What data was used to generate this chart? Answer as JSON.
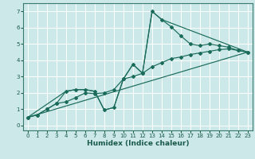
{
  "xlabel": "Humidex (Indice chaleur)",
  "bg_color": "#cce8e8",
  "grid_color": "#ffffff",
  "line_color": "#1a6b5a",
  "xlim": [
    -0.5,
    23.5
  ],
  "ylim": [
    -0.3,
    7.5
  ],
  "xticks": [
    0,
    1,
    2,
    3,
    4,
    5,
    6,
    7,
    8,
    9,
    10,
    11,
    12,
    13,
    14,
    15,
    16,
    17,
    18,
    19,
    20,
    21,
    22,
    23
  ],
  "yticks": [
    0,
    1,
    2,
    3,
    4,
    5,
    6,
    7
  ],
  "line1_x": [
    0,
    1,
    2,
    3,
    4,
    5,
    6,
    7,
    8,
    9,
    10,
    11,
    12,
    13,
    14,
    15,
    16,
    17,
    18,
    19,
    20,
    21,
    22,
    23
  ],
  "line1_y": [
    0.5,
    0.65,
    1.0,
    1.35,
    2.1,
    2.2,
    2.2,
    2.1,
    0.95,
    1.1,
    2.85,
    3.75,
    3.2,
    7.0,
    6.5,
    6.05,
    5.5,
    5.0,
    4.9,
    5.0,
    4.9,
    4.8,
    4.6,
    4.5
  ],
  "line2_x": [
    0,
    1,
    2,
    3,
    4,
    5,
    6,
    7,
    8,
    9,
    10,
    11,
    12,
    13,
    14,
    15,
    16,
    17,
    18,
    19,
    20,
    21,
    22,
    23
  ],
  "line2_y": [
    0.5,
    0.65,
    1.0,
    1.35,
    1.45,
    1.7,
    2.0,
    1.95,
    2.0,
    2.2,
    2.85,
    3.0,
    3.2,
    3.6,
    3.85,
    4.1,
    4.2,
    4.35,
    4.45,
    4.55,
    4.65,
    4.7,
    4.6,
    4.5
  ],
  "line3_x": [
    0,
    23
  ],
  "line3_y": [
    0.5,
    4.5
  ],
  "line4_x": [
    0,
    4,
    5,
    6,
    7,
    8,
    9,
    10,
    11,
    12,
    13,
    14,
    23
  ],
  "line4_y": [
    0.5,
    2.1,
    2.2,
    2.2,
    2.1,
    0.95,
    1.1,
    2.85,
    3.75,
    3.2,
    7.0,
    6.5,
    4.5
  ]
}
